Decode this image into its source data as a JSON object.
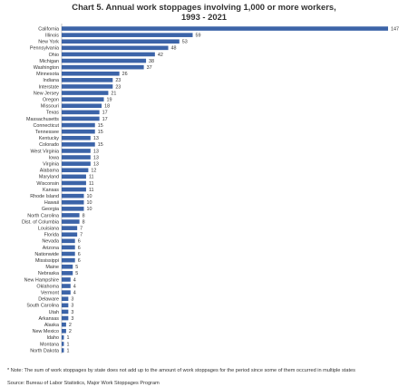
{
  "chart_data": {
    "type": "bar",
    "orientation": "horizontal",
    "title_lines": [
      "Chart 5. Annual work stoppages involving 1,000 or more workers,",
      "1993 - 2021"
    ],
    "xlabel": "",
    "ylabel": "",
    "grid": false,
    "bar_color": "#3c64a8",
    "xlim": [
      0,
      147
    ],
    "categories": [
      "California",
      "Illinois",
      "New York",
      "Pennsylvania",
      "Ohio",
      "Michigan",
      "Washington",
      "Minnesota",
      "Indiana",
      "Interstate",
      "New Jersey",
      "Oregon",
      "Missouri",
      "Texas",
      "Massachusetts",
      "Connecticut",
      "Tennessee",
      "Kentucky",
      "Colorado",
      "West Virginia",
      "Iowa",
      "Virginia",
      "Alabama",
      "Maryland",
      "Wisconsin",
      "Kansas",
      "Rhode Island",
      "Hawaii",
      "Georgia",
      "North Carolina",
      "Dist. of Columbia",
      "Louisiana",
      "Florida",
      "Nevada",
      "Arizona",
      "Nationwide",
      "Mississippi",
      "Maine",
      "Nebraska",
      "New Hampshire",
      "Oklahoma",
      "Vermont",
      "Delaware",
      "South Carolina",
      "Utah",
      "Arkansas",
      "Alaska",
      "New Mexico",
      "Idaho",
      "Montana",
      "North Dakota"
    ],
    "values": [
      147,
      59,
      53,
      48,
      42,
      38,
      37,
      26,
      23,
      23,
      21,
      19,
      18,
      17,
      17,
      15,
      15,
      13,
      15,
      13,
      13,
      13,
      12,
      11,
      11,
      11,
      10,
      10,
      10,
      8,
      8,
      7,
      7,
      6,
      6,
      6,
      6,
      5,
      5,
      4,
      4,
      4,
      3,
      3,
      3,
      3,
      2,
      2,
      1,
      1,
      1
    ]
  },
  "footnote": "* Note: The sum of work stoppages by state does not add up to the amount of work stoppages for the period since some of them occurred in multiple states",
  "source": "Source: Bureau of Labor Statistics, Major Work Stoppages Program"
}
